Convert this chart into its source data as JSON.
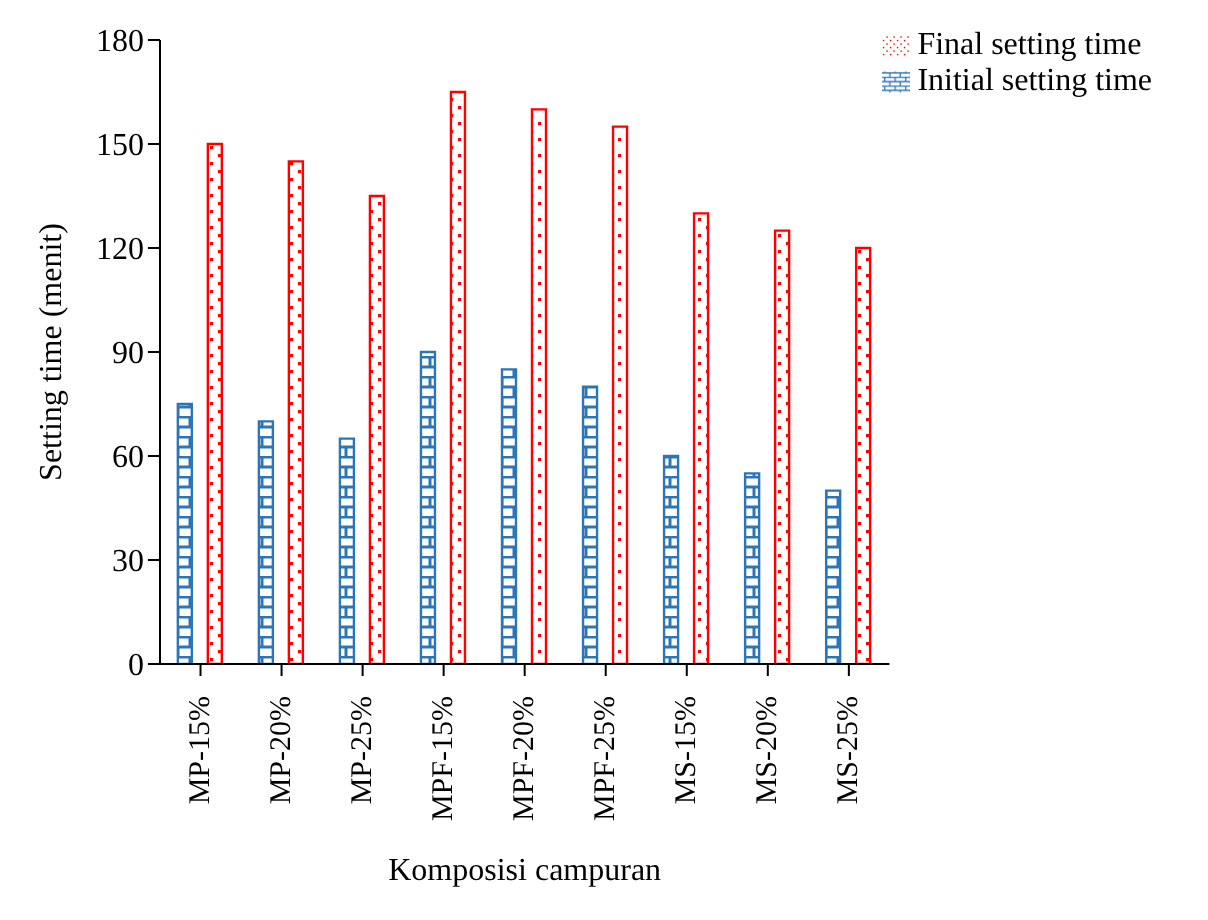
{
  "chart_data": {
    "type": "bar",
    "xlabel": "Komposisi campuran",
    "ylabel": "Setting time (menit)",
    "categories": [
      "MP-15%",
      "MP-20%",
      "MP-25%",
      "MPF-15%",
      "MPF-20%",
      "MPF-25%",
      "MS-15%",
      "MS-20%",
      "MS-25%"
    ],
    "series": [
      {
        "name": "Initial setting time",
        "color": "#2e75b6",
        "values": [
          75,
          70,
          65,
          90,
          85,
          80,
          60,
          55,
          50
        ]
      },
      {
        "name": "Final setting time",
        "color": "#ff0000",
        "values": [
          150,
          145,
          135,
          165,
          160,
          155,
          130,
          125,
          120
        ]
      }
    ],
    "ylim": [
      0,
      180
    ],
    "yticks": [
      0,
      30,
      60,
      90,
      120,
      150,
      180
    ],
    "grid": false,
    "legend": "top right"
  }
}
